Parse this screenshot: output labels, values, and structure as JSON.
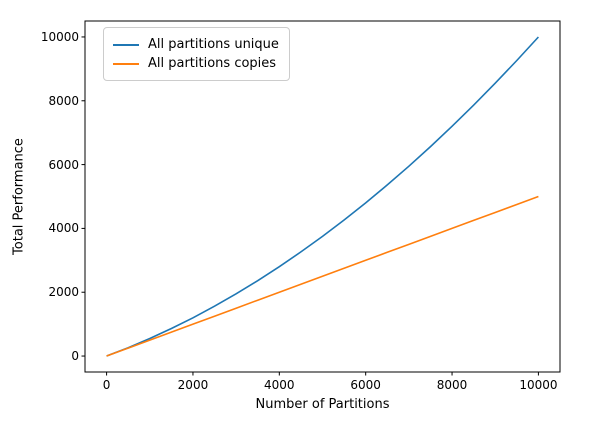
{
  "figure": {
    "background": "#ffffff",
    "plot_border_color": "#000000"
  },
  "chart_data": {
    "type": "line",
    "title": "",
    "xlabel": "Number of Partitions",
    "ylabel": "Total Performance",
    "xlim": [
      0,
      10000
    ],
    "ylim": [
      0,
      10000
    ],
    "x_ticks": [
      "0",
      "2000",
      "4000",
      "6000",
      "8000",
      "10000"
    ],
    "x_tick_values": [
      0,
      2000,
      4000,
      6000,
      8000,
      10000
    ],
    "y_ticks": [
      "0",
      "2000",
      "4000",
      "6000",
      "8000",
      "10000"
    ],
    "y_tick_values": [
      0,
      2000,
      4000,
      6000,
      8000,
      10000
    ],
    "grid": false,
    "legend_position": "upper-left",
    "x": [
      0,
      500,
      1000,
      1500,
      2000,
      2500,
      3000,
      3500,
      4000,
      4500,
      5000,
      5500,
      6000,
      6500,
      7000,
      7500,
      8000,
      8500,
      9000,
      9500,
      10000
    ],
    "series": [
      {
        "name": "All partitions unique",
        "color": "#1f77b4",
        "values": [
          0,
          262.5,
          550,
          862.5,
          1200,
          1562.5,
          1950,
          2362.5,
          2800,
          3262.5,
          3750,
          4262.5,
          4800,
          5362.5,
          5950,
          6562.5,
          7200,
          7862.5,
          8550,
          9262.5,
          10000
        ]
      },
      {
        "name": "All partitions copies",
        "color": "#ff7f0e",
        "values": [
          0,
          250,
          500,
          750,
          1000,
          1250,
          1500,
          1750,
          2000,
          2250,
          2500,
          2750,
          3000,
          3250,
          3500,
          3750,
          4000,
          4250,
          4500,
          4750,
          5000
        ]
      }
    ]
  }
}
